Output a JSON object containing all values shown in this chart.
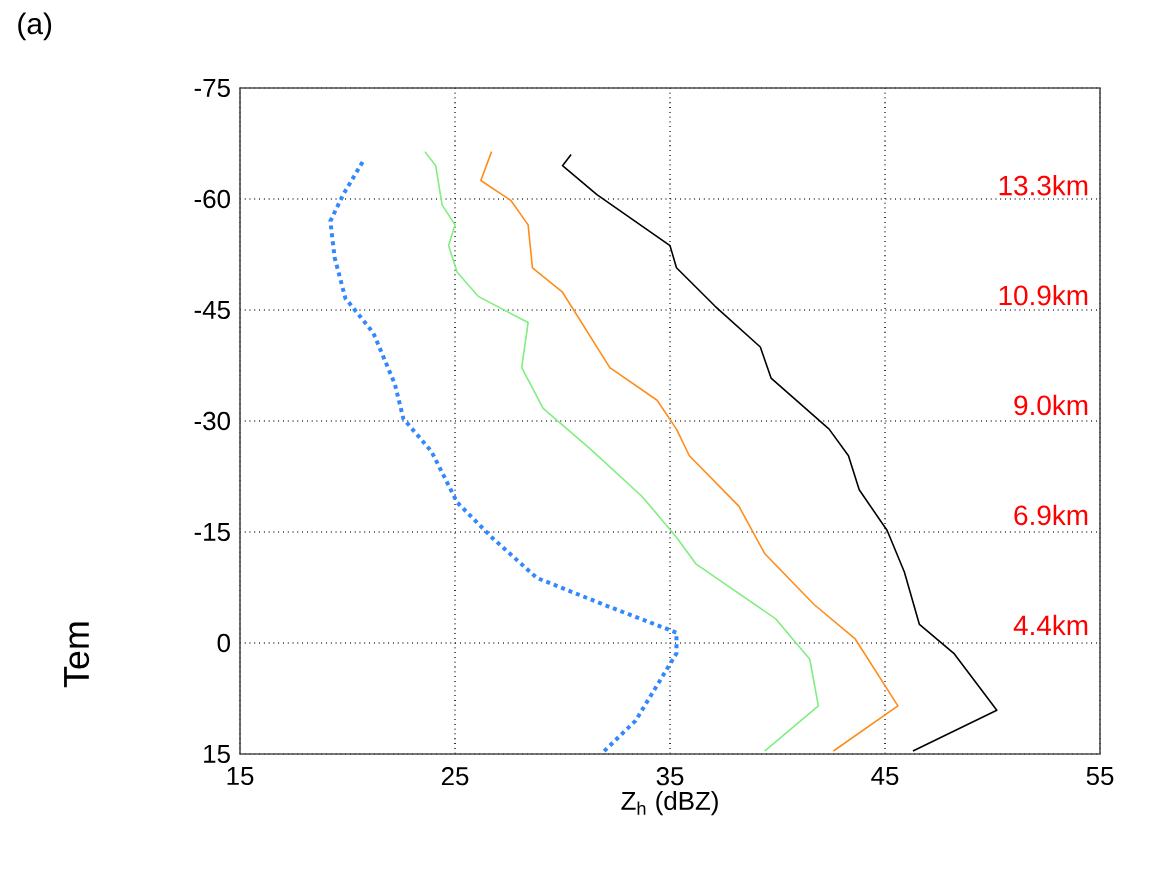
{
  "chart_data": {
    "type": "line",
    "title": "(a)",
    "xlabel": "Z$_{h}$ (dBZ)",
    "ylabel": "Tem",
    "xlim": [
      15,
      55
    ],
    "xticks": [
      15,
      25,
      35,
      45,
      55
    ],
    "ylim": [
      15,
      -75
    ],
    "yticks": [
      -75,
      -60,
      -45,
      -30,
      -15,
      0,
      15
    ],
    "grid": true,
    "series": [
      {
        "color": "#000000",
        "line_style": "solid",
        "x": [
          30.4,
          30.0,
          31.6,
          35.0,
          35.3,
          37.1,
          39.2,
          39.7,
          42.4,
          43.3,
          43.8,
          45.1,
          45.9,
          46.6,
          48.2,
          50.2,
          46.3
        ],
        "values": [
          -66,
          -64.5,
          -60.6,
          -53.7,
          -50.7,
          -45.5,
          -40,
          -35.8,
          -28.9,
          -25.3,
          -20.7,
          -15.2,
          -9.6,
          -2.5,
          1.4,
          9.1,
          14.6
        ]
      },
      {
        "color": "#ff8c1a",
        "line_style": "solid",
        "x": [
          26.7,
          26.2,
          27.6,
          28.4,
          28.6,
          30.0,
          32.2,
          34.4,
          35.3,
          35.9,
          38.2,
          39.4,
          41.7,
          43.6,
          45.6,
          42.6
        ],
        "values": [
          -66.4,
          -62.5,
          -59.8,
          -56.5,
          -50.7,
          -47.4,
          -37.2,
          -32.8,
          -28.9,
          -25.3,
          -18.5,
          -12.1,
          -5.2,
          -0.6,
          8.5,
          14.6
        ]
      },
      {
        "color": "#80ee80",
        "line_style": "solid",
        "x": [
          23.6,
          24.1,
          24.4,
          25.0,
          24.7,
          25.1,
          26.1,
          28.4,
          28.1,
          29.1,
          31.3,
          33.7,
          35.3,
          36.2,
          39.9,
          41.5,
          41.9,
          39.4
        ],
        "values": [
          -66.4,
          -64.5,
          -59.2,
          -56.5,
          -53.7,
          -50.1,
          -46.8,
          -43.3,
          -37.2,
          -31.7,
          -26.2,
          -19.8,
          -14.3,
          -10.7,
          -3.3,
          2.2,
          8.5,
          14.6
        ]
      },
      {
        "color": "#3388ff",
        "line_style": "dotted",
        "x": [
          20.7,
          19.8,
          19.2,
          19.4,
          19.9,
          21.2,
          22.2,
          22.6,
          23.9,
          25.1,
          26.7,
          28.8,
          31.9,
          35.3,
          35.3,
          33.4,
          31.8
        ],
        "values": [
          -65.0,
          -60.6,
          -57.0,
          -52.1,
          -46.6,
          -41.9,
          -35.0,
          -30.3,
          -25.9,
          -19.0,
          -14.3,
          -8.8,
          -5.2,
          -1.4,
          1.4,
          10.5,
          15.0
        ]
      }
    ],
    "annotations": [
      "13.3km",
      "10.9km",
      "9.0km",
      "6.9km",
      "4.4km"
    ]
  }
}
